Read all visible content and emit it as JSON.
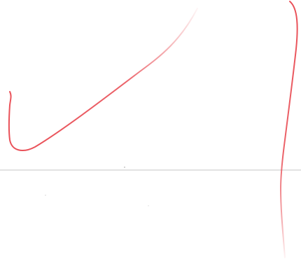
{
  "colors": {
    "background": "#ffffff",
    "stroke_red": "#e8474f",
    "rule_line": "#e2e2e2",
    "speck": "#c8c8c8"
  },
  "elements": {
    "left_stroke": "check-mark-stroke",
    "right_stroke": "vertical-curved-stroke",
    "rule": "horizontal-rule"
  }
}
